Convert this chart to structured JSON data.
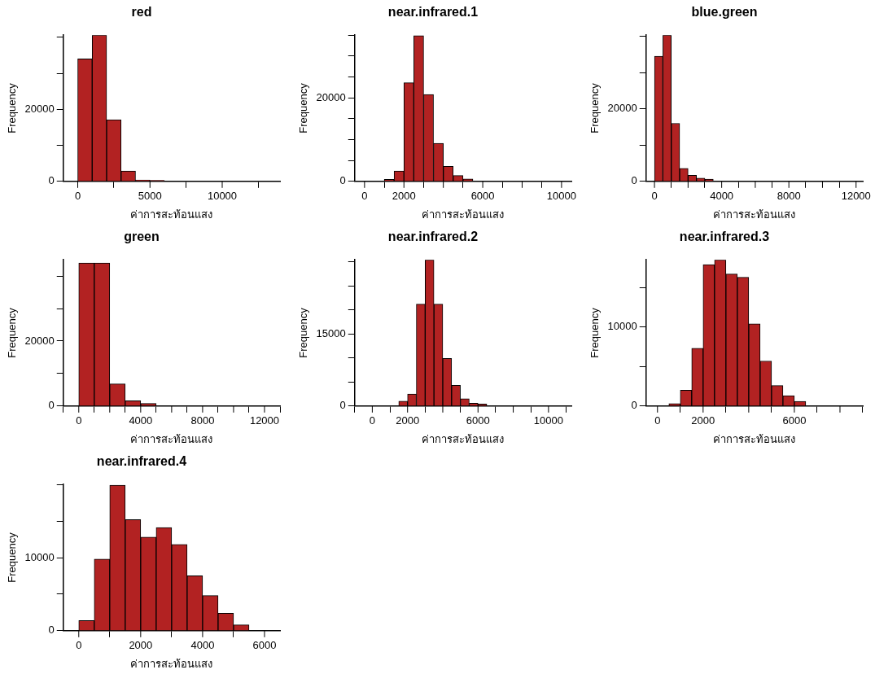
{
  "chart_data": [
    {
      "type": "histogram",
      "title": "red",
      "xlabel": "ค่าการสะท้อนแสง",
      "ylabel": "Frequency",
      "color": "#b22222",
      "bins": [
        0,
        1000,
        2000,
        3000,
        4000,
        5000,
        6000
      ],
      "values": [
        34000,
        40600,
        17100,
        2900,
        400,
        300
      ],
      "xlim": [
        -1000,
        14000
      ],
      "xticks": [
        0,
        5000,
        10000
      ],
      "ylim": [
        0,
        40600
      ],
      "yticks": [
        0,
        {
          "value": 10000,
          "label": null
        },
        20000,
        {
          "value": 30000,
          "label": null
        },
        {
          "value": 40000,
          "label": null
        }
      ]
    },
    {
      "type": "histogram",
      "title": "near.infrared.1",
      "xlabel": "ค่าการสะท้อนแสง",
      "ylabel": "Frequency",
      "color": "#b22222",
      "bins": [
        1000,
        1500,
        2000,
        2500,
        3000,
        3500,
        4000,
        4500,
        5000,
        5500
      ],
      "values": [
        500,
        2500,
        23600,
        34900,
        20800,
        9100,
        3600,
        1400,
        600
      ],
      "xlim": [
        -500,
        10500
      ],
      "xticks": [
        0,
        2000,
        {
          "value": 4000,
          "label": null
        },
        6000,
        {
          "value": 8000,
          "label": null
        },
        10000
      ],
      "ylim": [
        0,
        35000
      ],
      "yticks": [
        0,
        {
          "value": 5000,
          "label": null
        },
        {
          "value": 10000,
          "label": null
        },
        {
          "value": 15000,
          "label": null
        },
        20000,
        {
          "value": 25000,
          "label": null
        },
        {
          "value": 30000,
          "label": null
        },
        {
          "value": 35000,
          "label": null
        }
      ]
    },
    {
      "type": "histogram",
      "title": "blue.green",
      "xlabel": "ค่าการสะท้อนแสง",
      "ylabel": "Frequency",
      "color": "#b22222",
      "bins": [
        0,
        500,
        1000,
        1500,
        2000,
        2500,
        3000,
        3500
      ],
      "values": [
        34500,
        40300,
        16000,
        3600,
        1700,
        900,
        600
      ],
      "xlim": [
        -500,
        12400
      ],
      "xticks": [
        0,
        {
          "value": 2000,
          "label": null
        },
        4000,
        {
          "value": 6000,
          "label": null
        },
        8000,
        {
          "value": 10000,
          "label": null
        },
        12000
      ],
      "ylim": [
        0,
        40300
      ],
      "yticks": [
        0,
        {
          "value": 10000,
          "label": null
        },
        20000,
        {
          "value": 30000,
          "label": null
        },
        {
          "value": 40000,
          "label": null
        }
      ]
    },
    {
      "type": "histogram",
      "title": "green",
      "xlabel": "ค่าการสะท้อนแสง",
      "ylabel": "Frequency",
      "color": "#b22222",
      "bins": [
        0,
        1000,
        2000,
        3000,
        4000,
        5000
      ],
      "values": [
        44000,
        44000,
        6800,
        1600,
        800
      ],
      "xlim": [
        -1000,
        13000
      ],
      "xticks": [
        0,
        {
          "value": 2000,
          "label": null
        },
        4000,
        {
          "value": 6000,
          "label": null
        },
        8000,
        {
          "value": 10000,
          "label": null
        },
        12000
      ],
      "ylim": [
        0,
        45000
      ],
      "yticks": [
        0,
        {
          "value": 10000,
          "label": null
        },
        20000,
        {
          "value": 30000,
          "label": null
        },
        {
          "value": 40000,
          "label": null
        }
      ]
    },
    {
      "type": "histogram",
      "title": "near.infrared.2",
      "xlabel": "ค่าการสะท้อนแสง",
      "ylabel": "Frequency",
      "color": "#b22222",
      "bins": [
        1500,
        2000,
        2500,
        3000,
        3500,
        4000,
        4500,
        5000,
        5500,
        6000,
        6500
      ],
      "values": [
        1000,
        2500,
        21200,
        30400,
        21200,
        9900,
        4300,
        1500,
        600,
        400
      ],
      "xlim": [
        -1000,
        11300
      ],
      "xticks": [
        0,
        2000,
        {
          "value": 4000,
          "label": null
        },
        6000,
        {
          "value": 8000,
          "label": null
        },
        10000
      ],
      "ylim": [
        0,
        30400
      ],
      "yticks": [
        0,
        {
          "value": 5000,
          "label": null
        },
        {
          "value": 10000,
          "label": null
        },
        15000,
        {
          "value": 20000,
          "label": null
        },
        {
          "value": 25000,
          "label": null
        },
        {
          "value": 30000,
          "label": null
        }
      ]
    },
    {
      "type": "histogram",
      "title": "near.infrared.3",
      "xlabel": "ค่าการสะท้อนแสง",
      "ylabel": "Frequency",
      "color": "#b22222",
      "bins": [
        500,
        1000,
        1500,
        2000,
        2500,
        3000,
        3500,
        4000,
        4500,
        5000,
        5500,
        6000,
        6500
      ],
      "values": [
        300,
        2000,
        7300,
        17900,
        18500,
        16700,
        16300,
        10400,
        5700,
        2600,
        1300,
        600
      ],
      "xlim": [
        -500,
        9000
      ],
      "xticks": [
        0,
        2000,
        {
          "value": 4000,
          "label": null
        },
        6000,
        {
          "value": 8000,
          "label": null
        }
      ],
      "ylim": [
        0,
        18500
      ],
      "yticks": [
        0,
        {
          "value": 5000,
          "label": null
        },
        10000,
        {
          "value": 15000,
          "label": null
        }
      ]
    },
    {
      "type": "histogram",
      "title": "near.infrared.4",
      "xlabel": "ค่าการสะท้อนแสง",
      "ylabel": "Frequency",
      "color": "#b22222",
      "bins": [
        0,
        500,
        1000,
        1500,
        2000,
        2500,
        3000,
        3500,
        4000,
        4500,
        5000,
        5500
      ],
      "values": [
        1400,
        9800,
        19900,
        15200,
        12800,
        14100,
        11800,
        7500,
        4800,
        2400,
        800
      ],
      "xlim": [
        -500,
        6500
      ],
      "xticks": [
        0,
        2000,
        4000,
        6000
      ],
      "ylim": [
        0,
        20000
      ],
      "yticks": [
        0,
        {
          "value": 5000,
          "label": null
        },
        10000,
        {
          "value": 15000,
          "label": null
        },
        {
          "value": 20000,
          "label": null
        }
      ]
    }
  ]
}
